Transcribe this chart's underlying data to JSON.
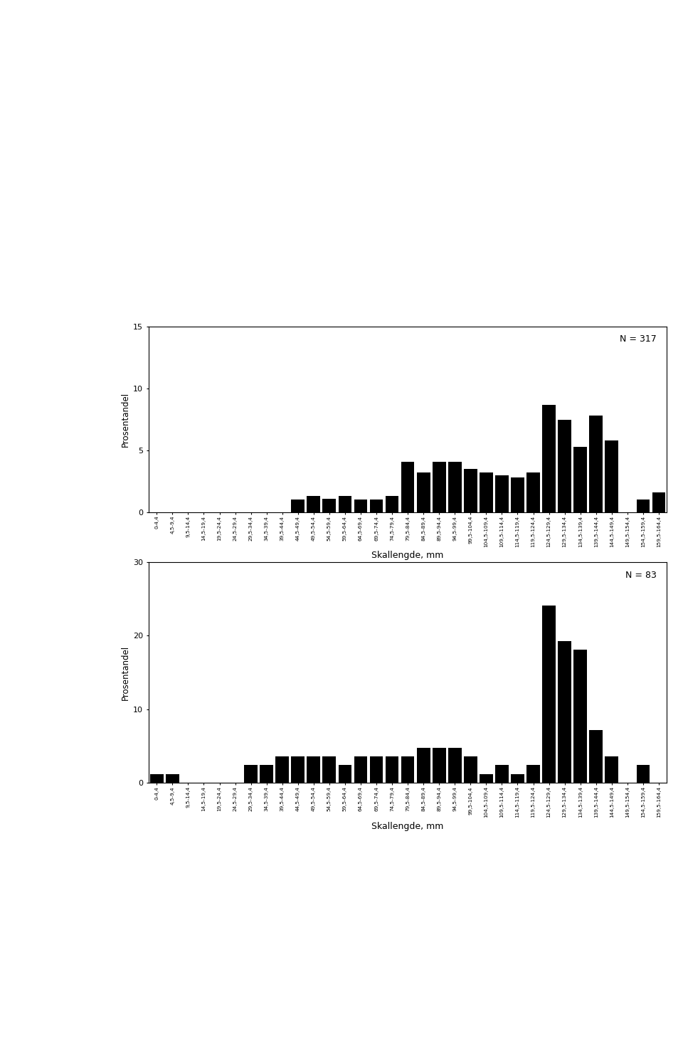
{
  "categories": [
    "0-4,4",
    "4,5-9,4",
    "9,5-14,4",
    "14,5-19,4",
    "19,5-24,4",
    "24,5-29,4",
    "29,5-34,4",
    "34,5-39,4",
    "39,5-44,4",
    "44,5-49,4",
    "49,5-54,4",
    "54,5-59,4",
    "59,5-64,4",
    "64,5-69,4",
    "69,5-74,4",
    "74,5-79,4",
    "79,5-84,4",
    "84,5-89,4",
    "89,5-94,4",
    "94,5-99,4",
    "99,5-104,4",
    "104,5-109,4",
    "109,5-114,4",
    "114,5-119,4",
    "119,5-124,4",
    "124,5-129,4",
    "129,5-134,4",
    "134,5-139,4",
    "139,5-144,4",
    "144,5-149,4",
    "149,5-154,4",
    "154,5-159,4",
    "159,5-164,4"
  ],
  "chart1_values": [
    0.0,
    0.0,
    0.0,
    0.0,
    0.0,
    0.0,
    0.0,
    0.0,
    0.0,
    1.0,
    1.3,
    1.1,
    1.3,
    1.0,
    1.0,
    1.3,
    4.1,
    3.2,
    4.1,
    4.1,
    3.5,
    3.2,
    3.0,
    2.8,
    3.2,
    8.7,
    7.5,
    5.3,
    7.8,
    5.8,
    0.0,
    1.0,
    1.6
  ],
  "chart2_values": [
    1.2,
    1.2,
    0.0,
    0.0,
    0.0,
    0.0,
    2.4,
    2.4,
    3.6,
    3.6,
    3.6,
    3.6,
    2.4,
    3.6,
    3.6,
    3.6,
    3.6,
    4.8,
    4.8,
    4.8,
    3.6,
    1.2,
    2.4,
    1.2,
    2.4,
    24.1,
    19.3,
    18.1,
    7.2,
    3.6,
    0.0,
    2.4,
    0.0
  ],
  "chart1_n": "N = 317",
  "chart2_n": "N = 83",
  "ylabel": "Prosentandel",
  "xlabel": "Skallengde, mm",
  "chart1_ylim": [
    0,
    15
  ],
  "chart1_yticks": [
    0,
    5,
    10,
    15
  ],
  "chart2_ylim": [
    0,
    30
  ],
  "chart2_yticks": [
    0,
    10,
    20,
    30
  ],
  "bar_color": "#000000",
  "page_width": 9.6,
  "page_height": 14.63
}
